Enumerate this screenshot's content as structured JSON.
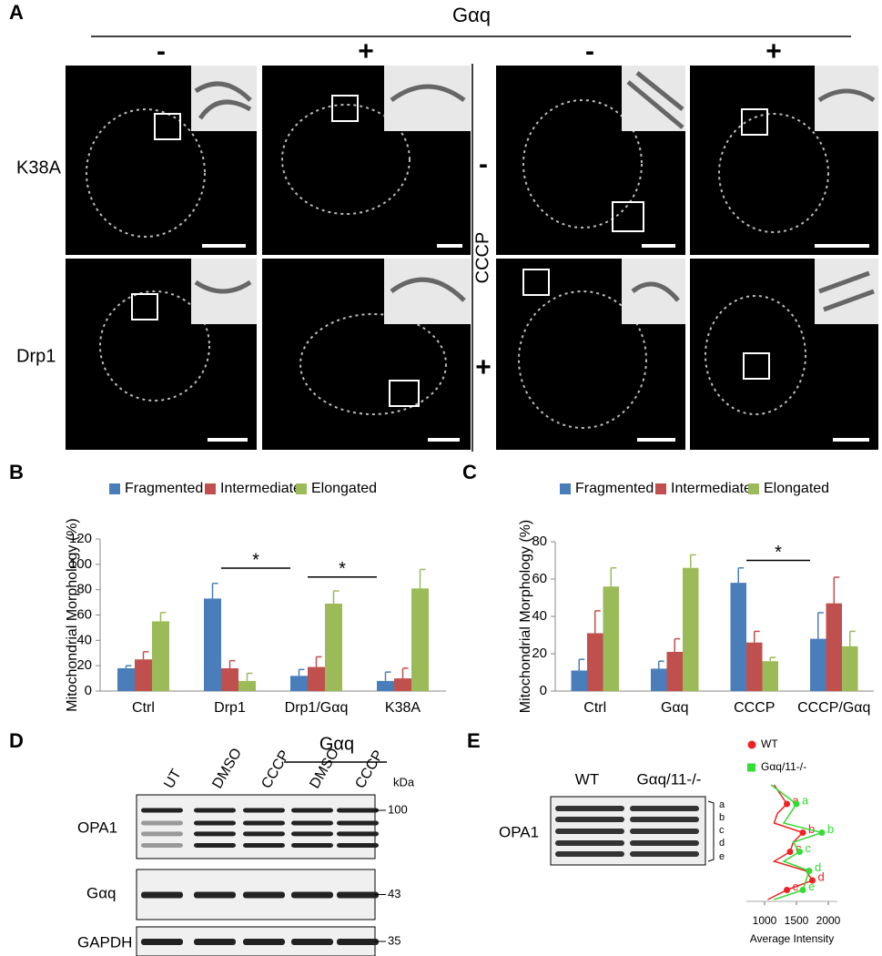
{
  "panel_labels": [
    "A",
    "B",
    "C",
    "D",
    "E"
  ],
  "panel_a": {
    "title": "Gαq",
    "column_signs": [
      "-",
      "+",
      "-",
      "+"
    ],
    "row_labels": [
      "K38A",
      "Drp1"
    ],
    "treatment": "CCCP",
    "treatment_signs": [
      "-",
      "+"
    ]
  },
  "chart_data": [
    {
      "type": "bar",
      "y_label": "Mitochondrial Morphology (%)",
      "categories": [
        "Ctrl",
        "Drp1",
        "Drp1/Gαq",
        "K38A"
      ],
      "series": [
        {
          "name": "Fragmented",
          "color": "#4a7ebb",
          "values": [
            18,
            73,
            12,
            8
          ],
          "errors": [
            2,
            12,
            5,
            7
          ]
        },
        {
          "name": "Intermediate",
          "color": "#c0504d",
          "values": [
            25,
            18,
            19,
            10
          ],
          "errors": [
            6,
            6,
            8,
            8
          ]
        },
        {
          "name": "Elongated",
          "color": "#9bbb59",
          "values": [
            55,
            8,
            69,
            81
          ],
          "errors": [
            7,
            6,
            10,
            15
          ]
        }
      ],
      "ylim": [
        0,
        120
      ],
      "yticks": [
        0,
        20,
        40,
        60,
        80,
        100,
        120
      ],
      "grid": false,
      "legend": "top",
      "annotations": [
        {
          "label": "*",
          "from": "Drp1",
          "to": "Drp1/Gαq",
          "y": 97
        },
        {
          "label": "*",
          "from": "Drp1/Gαq",
          "to": "K38A",
          "y": 90
        }
      ]
    },
    {
      "type": "bar",
      "y_label": "Mitochondrial Morphology (%)",
      "categories": [
        "Ctrl",
        "Gαq",
        "CCCP",
        "CCCP/Gαq"
      ],
      "series": [
        {
          "name": "Fragmented",
          "color": "#4a7ebb",
          "values": [
            11,
            12,
            58,
            28
          ],
          "errors": [
            6,
            4,
            8,
            14
          ]
        },
        {
          "name": "Intermediate",
          "color": "#c0504d",
          "values": [
            31,
            21,
            26,
            47
          ],
          "errors": [
            12,
            7,
            6,
            14
          ]
        },
        {
          "name": "Elongated",
          "color": "#9bbb59",
          "values": [
            56,
            66,
            16,
            24
          ],
          "errors": [
            10,
            7,
            2,
            8
          ]
        }
      ],
      "ylim": [
        0,
        80
      ],
      "yticks": [
        0,
        20,
        40,
        60,
        80
      ],
      "grid": false,
      "legend": "top",
      "annotations": [
        {
          "label": "*",
          "from": "CCCP",
          "to": "CCCP/Gαq",
          "y": 70
        }
      ]
    },
    {
      "type": "line",
      "orientation": "vertical",
      "x_label": "Average Intensity",
      "xlim": [
        1000,
        2000
      ],
      "xticks": [
        1000,
        1500,
        2000
      ],
      "series": [
        {
          "name": "WT",
          "color": "#ee2222",
          "marker": "circle",
          "values": [
            1150,
            1250,
            1350,
            1200,
            1150,
            1600,
            1450,
            1400,
            1150,
            1650,
            1750,
            1350,
            1050
          ],
          "point_labels": [
            null,
            null,
            "a",
            null,
            null,
            "b",
            null,
            "c",
            null,
            null,
            "d",
            "e",
            null
          ]
        },
        {
          "name": "Gαq/11-/-",
          "color": "#33dd33",
          "marker": "square",
          "values": [
            1100,
            1300,
            1500,
            1400,
            1300,
            1900,
            1450,
            1550,
            1300,
            1700,
            1650,
            1600,
            1150
          ],
          "point_labels": [
            null,
            null,
            "a",
            null,
            null,
            "b",
            null,
            "c",
            null,
            "d",
            null,
            "e",
            null
          ]
        }
      ]
    }
  ],
  "panel_d": {
    "lanes": [
      "UT",
      "DMSO",
      "CCCP",
      "DMSO",
      "CCCP"
    ],
    "group_label": "Gαq",
    "unit": "kDa",
    "blots": [
      {
        "label": "OPA1",
        "marker": "100"
      },
      {
        "label": "Gαq",
        "marker": "43"
      },
      {
        "label": "GAPDH",
        "marker": "35"
      }
    ]
  },
  "panel_e": {
    "lanes": [
      "WT",
      "Gαq/11-/-"
    ],
    "blot_label": "OPA1",
    "band_labels": [
      "a",
      "b",
      "c",
      "d",
      "e"
    ]
  }
}
